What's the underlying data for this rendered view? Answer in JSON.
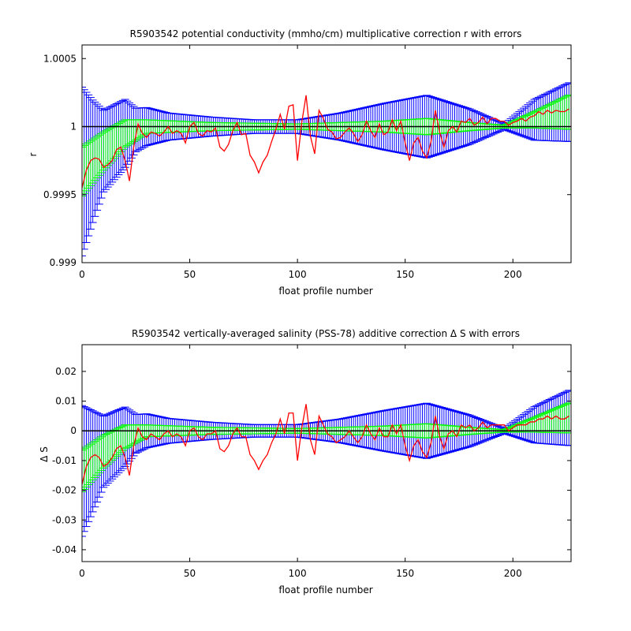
{
  "chart_data": [
    {
      "type": "line",
      "title": "R5903542 potential conductivity (mmho/cm) multiplicative correction r with errors",
      "xlabel": "float profile number",
      "ylabel": "r",
      "xlim": [
        0,
        227
      ],
      "ylim": [
        0.999,
        1.0006
      ],
      "xticks": [
        0,
        50,
        100,
        150,
        200
      ],
      "yticks": [
        0.999,
        0.9995,
        1,
        1.0005
      ],
      "ytick_labels": [
        "0.999",
        "0.9995",
        "1",
        "1.0005"
      ],
      "reference_line": 1,
      "error_bars_outer": [
        {
          "x": 0,
          "half": 0.00062
        },
        {
          "x": 5,
          "half": 0.00045
        },
        {
          "x": 10,
          "half": 0.0003
        },
        {
          "x": 20,
          "half": 0.00025
        },
        {
          "x": 25,
          "half": 0.00016
        },
        {
          "x": 40,
          "half": 0.0001
        },
        {
          "x": 60,
          "half": 7e-05
        },
        {
          "x": 80,
          "half": 5e-05
        },
        {
          "x": 100,
          "half": 5e-05
        },
        {
          "x": 120,
          "half": 0.0001
        },
        {
          "x": 140,
          "half": 0.00017
        },
        {
          "x": 160,
          "half": 0.00023
        },
        {
          "x": 180,
          "half": 0.00013
        },
        {
          "x": 196,
          "half": 2e-05
        },
        {
          "x": 210,
          "half": 0.00015
        },
        {
          "x": 227,
          "half": 0.00022
        }
      ],
      "error_bars_outer_center": [
        {
          "x": 0,
          "y": 0.99967
        },
        {
          "x": 10,
          "y": 0.99982
        },
        {
          "x": 20,
          "y": 0.99995
        },
        {
          "x": 30,
          "y": 1.0
        },
        {
          "x": 196,
          "y": 1.0
        },
        {
          "x": 227,
          "y": 1.00011
        }
      ],
      "error_bars_inner": [
        {
          "x": 0,
          "half": 0.00018
        },
        {
          "x": 10,
          "half": 0.00014
        },
        {
          "x": 20,
          "half": 0.0001
        },
        {
          "x": 30,
          "half": 5e-05
        },
        {
          "x": 60,
          "half": 3e-05
        },
        {
          "x": 100,
          "half": 2e-05
        },
        {
          "x": 140,
          "half": 4e-05
        },
        {
          "x": 160,
          "half": 6e-05
        },
        {
          "x": 180,
          "half": 3e-05
        },
        {
          "x": 196,
          "half": 1e-05
        },
        {
          "x": 210,
          "half": 6e-05
        },
        {
          "x": 227,
          "half": 0.00013
        }
      ],
      "series": [
        {
          "color": "#ff0000",
          "x": [
            0,
            2,
            4,
            6,
            8,
            10,
            12,
            14,
            16,
            18,
            20,
            22,
            24,
            26,
            28,
            30,
            32,
            34,
            36,
            38,
            40,
            42,
            44,
            46,
            48,
            50,
            52,
            54,
            56,
            58,
            60,
            62,
            64,
            66,
            68,
            70,
            72,
            74,
            76,
            78,
            80,
            82,
            84,
            86,
            88,
            90,
            92,
            94,
            96,
            98,
            100,
            102,
            104,
            106,
            108,
            110,
            112,
            114,
            116,
            118,
            120,
            122,
            124,
            126,
            128,
            130,
            132,
            134,
            136,
            138,
            140,
            142,
            144,
            146,
            148,
            150,
            152,
            154,
            156,
            158,
            160,
            162,
            164,
            166,
            168,
            170,
            172,
            174,
            176,
            178,
            180,
            182,
            184,
            186,
            188,
            190,
            192,
            194,
            196,
            198,
            200,
            202,
            204,
            206,
            208,
            210,
            212,
            214,
            216,
            218,
            220,
            222,
            224,
            226
          ],
          "y": [
            0.99955,
            0.99968,
            0.99975,
            0.99977,
            0.99976,
            0.9997,
            0.99972,
            0.99975,
            0.99983,
            0.99985,
            0.99975,
            0.9996,
            0.99985,
            1.00002,
            0.99995,
            0.99992,
            0.99996,
            0.99995,
            0.99993,
            0.99996,
            1.0,
            0.99995,
            0.99997,
            0.99995,
            0.99988,
            1.0,
            1.00003,
            0.99995,
            0.99993,
            0.99997,
            0.99996,
            0.99999,
            0.99985,
            0.99982,
            0.99987,
            0.99997,
            1.00003,
            0.99994,
            0.99995,
            0.99979,
            0.99974,
            0.99966,
            0.99974,
            0.99979,
            0.99989,
            0.99998,
            1.00009,
            0.99998,
            1.00015,
            1.00016,
            0.99975,
            1.00003,
            1.00023,
            0.99993,
            0.9998,
            1.00012,
            1.00006,
            0.99998,
            0.99996,
            0.99991,
            0.99992,
            0.99996,
            0.99999,
            0.99995,
            0.99989,
            0.99994,
            1.00004,
            0.99997,
            0.99992,
            1.00002,
            0.99994,
            0.99996,
            1.00005,
            0.99997,
            1.00004,
            0.99988,
            0.99975,
            0.99988,
            0.99992,
            0.99982,
            0.99977,
            0.99989,
            1.00012,
            0.99996,
            0.99985,
            0.99997,
            1.0,
            0.99996,
            1.00004,
            1.00003,
            1.00006,
            1.00001,
            1.00003,
            1.00007,
            1.00002,
            1.00006,
            1.00006,
            1.00004,
            1.00004,
            1.00001,
            1.00003,
            1.00004,
            1.00006,
            1.00004,
            1.00007,
            1.00008,
            1.00011,
            1.00009,
            1.00012,
            1.0001,
            1.00012,
            1.00011,
            1.00011,
            1.00013
          ]
        }
      ]
    },
    {
      "type": "line",
      "title": "R5903542 vertically-averaged salinity (PSS-78) additive correction Δ S with errors",
      "xlabel": "float profile number",
      "ylabel": "Δ S",
      "xlim": [
        0,
        227
      ],
      "ylim": [
        -0.044,
        0.029
      ],
      "xticks": [
        0,
        50,
        100,
        150,
        200
      ],
      "yticks": [
        -0.04,
        -0.03,
        -0.02,
        -0.01,
        0,
        0.01,
        0.02
      ],
      "ytick_labels": [
        "-0.04",
        "-0.03",
        "-0.02",
        "-0.01",
        "0",
        "0.01",
        "0.02"
      ],
      "reference_line": 0,
      "error_bars_outer": [
        {
          "x": 0,
          "half": 0.022
        },
        {
          "x": 5,
          "half": 0.017
        },
        {
          "x": 10,
          "half": 0.012
        },
        {
          "x": 20,
          "half": 0.01
        },
        {
          "x": 25,
          "half": 0.0065
        },
        {
          "x": 40,
          "half": 0.0042
        },
        {
          "x": 60,
          "half": 0.0029
        },
        {
          "x": 80,
          "half": 0.0021
        },
        {
          "x": 100,
          "half": 0.0021
        },
        {
          "x": 120,
          "half": 0.004
        },
        {
          "x": 140,
          "half": 0.0068
        },
        {
          "x": 160,
          "half": 0.0093
        },
        {
          "x": 180,
          "half": 0.0053
        },
        {
          "x": 196,
          "half": 0.0008
        },
        {
          "x": 210,
          "half": 0.0061
        },
        {
          "x": 227,
          "half": 0.0095
        }
      ],
      "error_bars_outer_center": [
        {
          "x": 0,
          "y": -0.0135
        },
        {
          "x": 10,
          "y": -0.007
        },
        {
          "x": 20,
          "y": -0.002
        },
        {
          "x": 30,
          "y": 0.0
        },
        {
          "x": 196,
          "y": 0.0
        },
        {
          "x": 227,
          "y": 0.0045
        }
      ],
      "error_bars_inner": [
        {
          "x": 0,
          "half": 0.007
        },
        {
          "x": 10,
          "half": 0.0055
        },
        {
          "x": 20,
          "half": 0.004
        },
        {
          "x": 30,
          "half": 0.002
        },
        {
          "x": 60,
          "half": 0.0012
        },
        {
          "x": 100,
          "half": 0.0008
        },
        {
          "x": 140,
          "half": 0.0016
        },
        {
          "x": 160,
          "half": 0.0024
        },
        {
          "x": 180,
          "half": 0.0012
        },
        {
          "x": 196,
          "half": 0.0004
        },
        {
          "x": 210,
          "half": 0.0025
        },
        {
          "x": 227,
          "half": 0.0052
        }
      ],
      "series": [
        {
          "color": "#ff0000",
          "x": [
            0,
            2,
            4,
            6,
            8,
            10,
            12,
            14,
            16,
            18,
            20,
            22,
            24,
            26,
            28,
            30,
            32,
            34,
            36,
            38,
            40,
            42,
            44,
            46,
            48,
            50,
            52,
            54,
            56,
            58,
            60,
            62,
            64,
            66,
            68,
            70,
            72,
            74,
            76,
            78,
            80,
            82,
            84,
            86,
            88,
            90,
            92,
            94,
            96,
            98,
            100,
            102,
            104,
            106,
            108,
            110,
            112,
            114,
            116,
            118,
            120,
            122,
            124,
            126,
            128,
            130,
            132,
            134,
            136,
            138,
            140,
            142,
            144,
            146,
            148,
            150,
            152,
            154,
            156,
            158,
            160,
            162,
            164,
            166,
            168,
            170,
            172,
            174,
            176,
            178,
            180,
            182,
            184,
            186,
            188,
            190,
            192,
            194,
            196,
            198,
            200,
            202,
            204,
            206,
            208,
            210,
            212,
            214,
            216,
            218,
            220,
            222,
            224,
            226
          ],
          "y": [
            -0.018,
            -0.012,
            -0.009,
            -0.008,
            -0.009,
            -0.012,
            -0.011,
            -0.009,
            -0.006,
            -0.005,
            -0.009,
            -0.015,
            -0.005,
            0.001,
            -0.002,
            -0.003,
            -0.001,
            -0.002,
            -0.003,
            -0.001,
            0.0,
            -0.002,
            -0.001,
            -0.002,
            -0.005,
            0.0,
            0.001,
            -0.002,
            -0.003,
            -0.001,
            -0.001,
            0.0,
            -0.006,
            -0.007,
            -0.005,
            -0.001,
            0.001,
            -0.002,
            -0.002,
            -0.008,
            -0.01,
            -0.013,
            -0.01,
            -0.008,
            -0.004,
            -0.001,
            0.004,
            -0.001,
            0.006,
            0.006,
            -0.01,
            0.001,
            0.009,
            -0.003,
            -0.008,
            0.005,
            0.002,
            -0.001,
            -0.002,
            -0.004,
            -0.003,
            -0.002,
            0.0,
            -0.002,
            -0.004,
            -0.002,
            0.002,
            -0.001,
            -0.003,
            0.001,
            -0.002,
            -0.002,
            0.002,
            -0.001,
            0.002,
            -0.005,
            -0.01,
            -0.005,
            -0.003,
            -0.007,
            -0.009,
            -0.004,
            0.005,
            -0.002,
            -0.006,
            -0.001,
            0.0,
            -0.002,
            0.002,
            0.001,
            0.002,
            0.0,
            0.001,
            0.003,
            0.001,
            0.002,
            0.002,
            0.002,
            0.002,
            0.0,
            0.001,
            0.002,
            0.002,
            0.002,
            0.003,
            0.003,
            0.004,
            0.004,
            0.005,
            0.004,
            0.005,
            0.004,
            0.004,
            0.005
          ]
        }
      ]
    }
  ]
}
